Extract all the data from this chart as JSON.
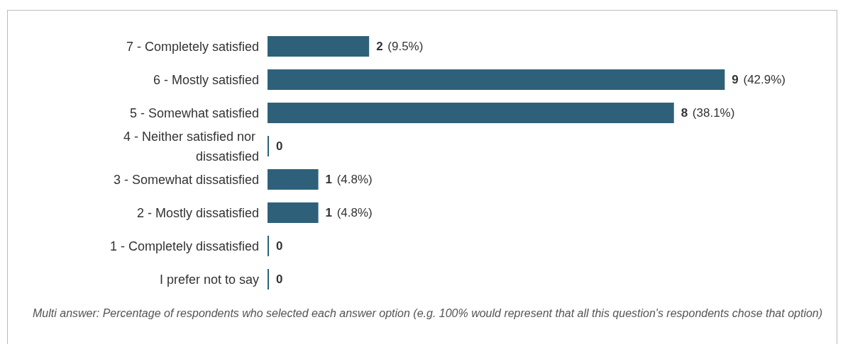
{
  "chart_data": {
    "type": "bar",
    "orientation": "horizontal",
    "categories": [
      "7 - Completely satisfied",
      "6 - Mostly satisfied",
      "5 - Somewhat satisfied",
      "4 - Neither satisfied nor dissatisfied",
      "3 - Somewhat dissatisfied",
      "2 - Mostly dissatisfied",
      "1 - Completely dissatisfied",
      "I prefer not to say"
    ],
    "values": [
      2,
      9,
      8,
      0,
      1,
      1,
      0,
      0
    ],
    "value_labels": [
      "2 (9.5%)",
      "9 (42.9%)",
      "8 (38.1%)",
      "0",
      "1 (4.8%)",
      "1 (4.8%)",
      "0",
      "0"
    ],
    "color": "#2e6179",
    "grid": false,
    "annotations": [
      "Multi answer: Percentage of respondents who selected each answer option (e.g. 100% would represent that all this question's respondents chose that option)"
    ]
  }
}
